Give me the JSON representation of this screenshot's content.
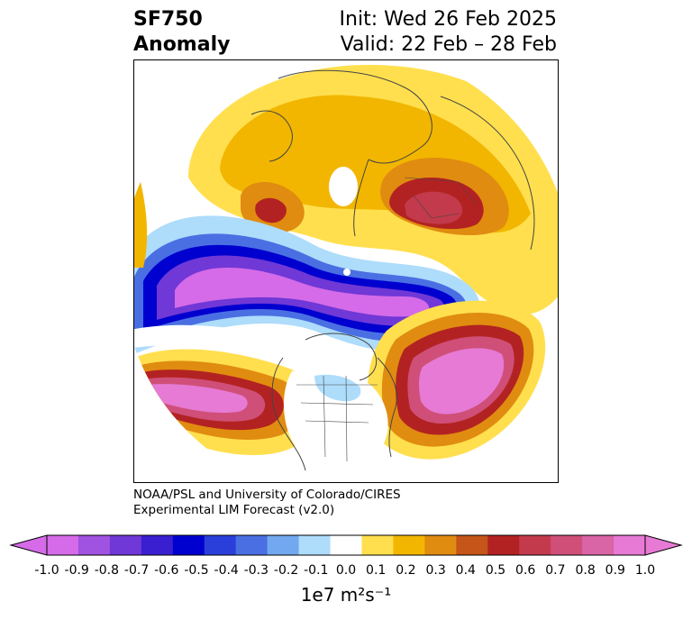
{
  "header": {
    "variable": "SF750",
    "quantity": "Anomaly",
    "init": "Init: Wed 26 Feb 2025",
    "valid": "Valid: 22 Feb – 28 Feb"
  },
  "credit": {
    "line1": "NOAA/PSL and University of Colorado/CIRES",
    "line2": "Experimental LIM Forecast (v2.0)"
  },
  "colorbar": {
    "ticks": [
      "-1.0",
      "-0.9",
      "-0.8",
      "-0.7",
      "-0.6",
      "-0.5",
      "-0.4",
      "-0.3",
      "-0.2",
      "-0.1",
      "0.0",
      "0.1",
      "0.2",
      "0.3",
      "0.4",
      "0.5",
      "0.6",
      "0.7",
      "0.8",
      "0.9",
      "1.0"
    ],
    "colors": [
      "#d56be8",
      "#a052e0",
      "#7038d6",
      "#3a1fd0",
      "#0000cf",
      "#2a3fd9",
      "#4a6fe3",
      "#72a8ef",
      "#aedcfb",
      "#ffffff",
      "#ffdf4e",
      "#f2b600",
      "#e08c10",
      "#c55518",
      "#b32222",
      "#c23a4c",
      "#cf4f78",
      "#d964a6",
      "#e67ad4"
    ],
    "units": "1e7 m²s⁻¹"
  },
  "map": {
    "projection": "north-polar-stereographic",
    "features": [
      "positive-anomaly-siberia",
      "positive-anomaly-north-atlantic",
      "positive-anomaly-north-pacific",
      "negative-anomaly-arctic-canada",
      "negative-anomaly-north-atlantic-arctic"
    ]
  }
}
